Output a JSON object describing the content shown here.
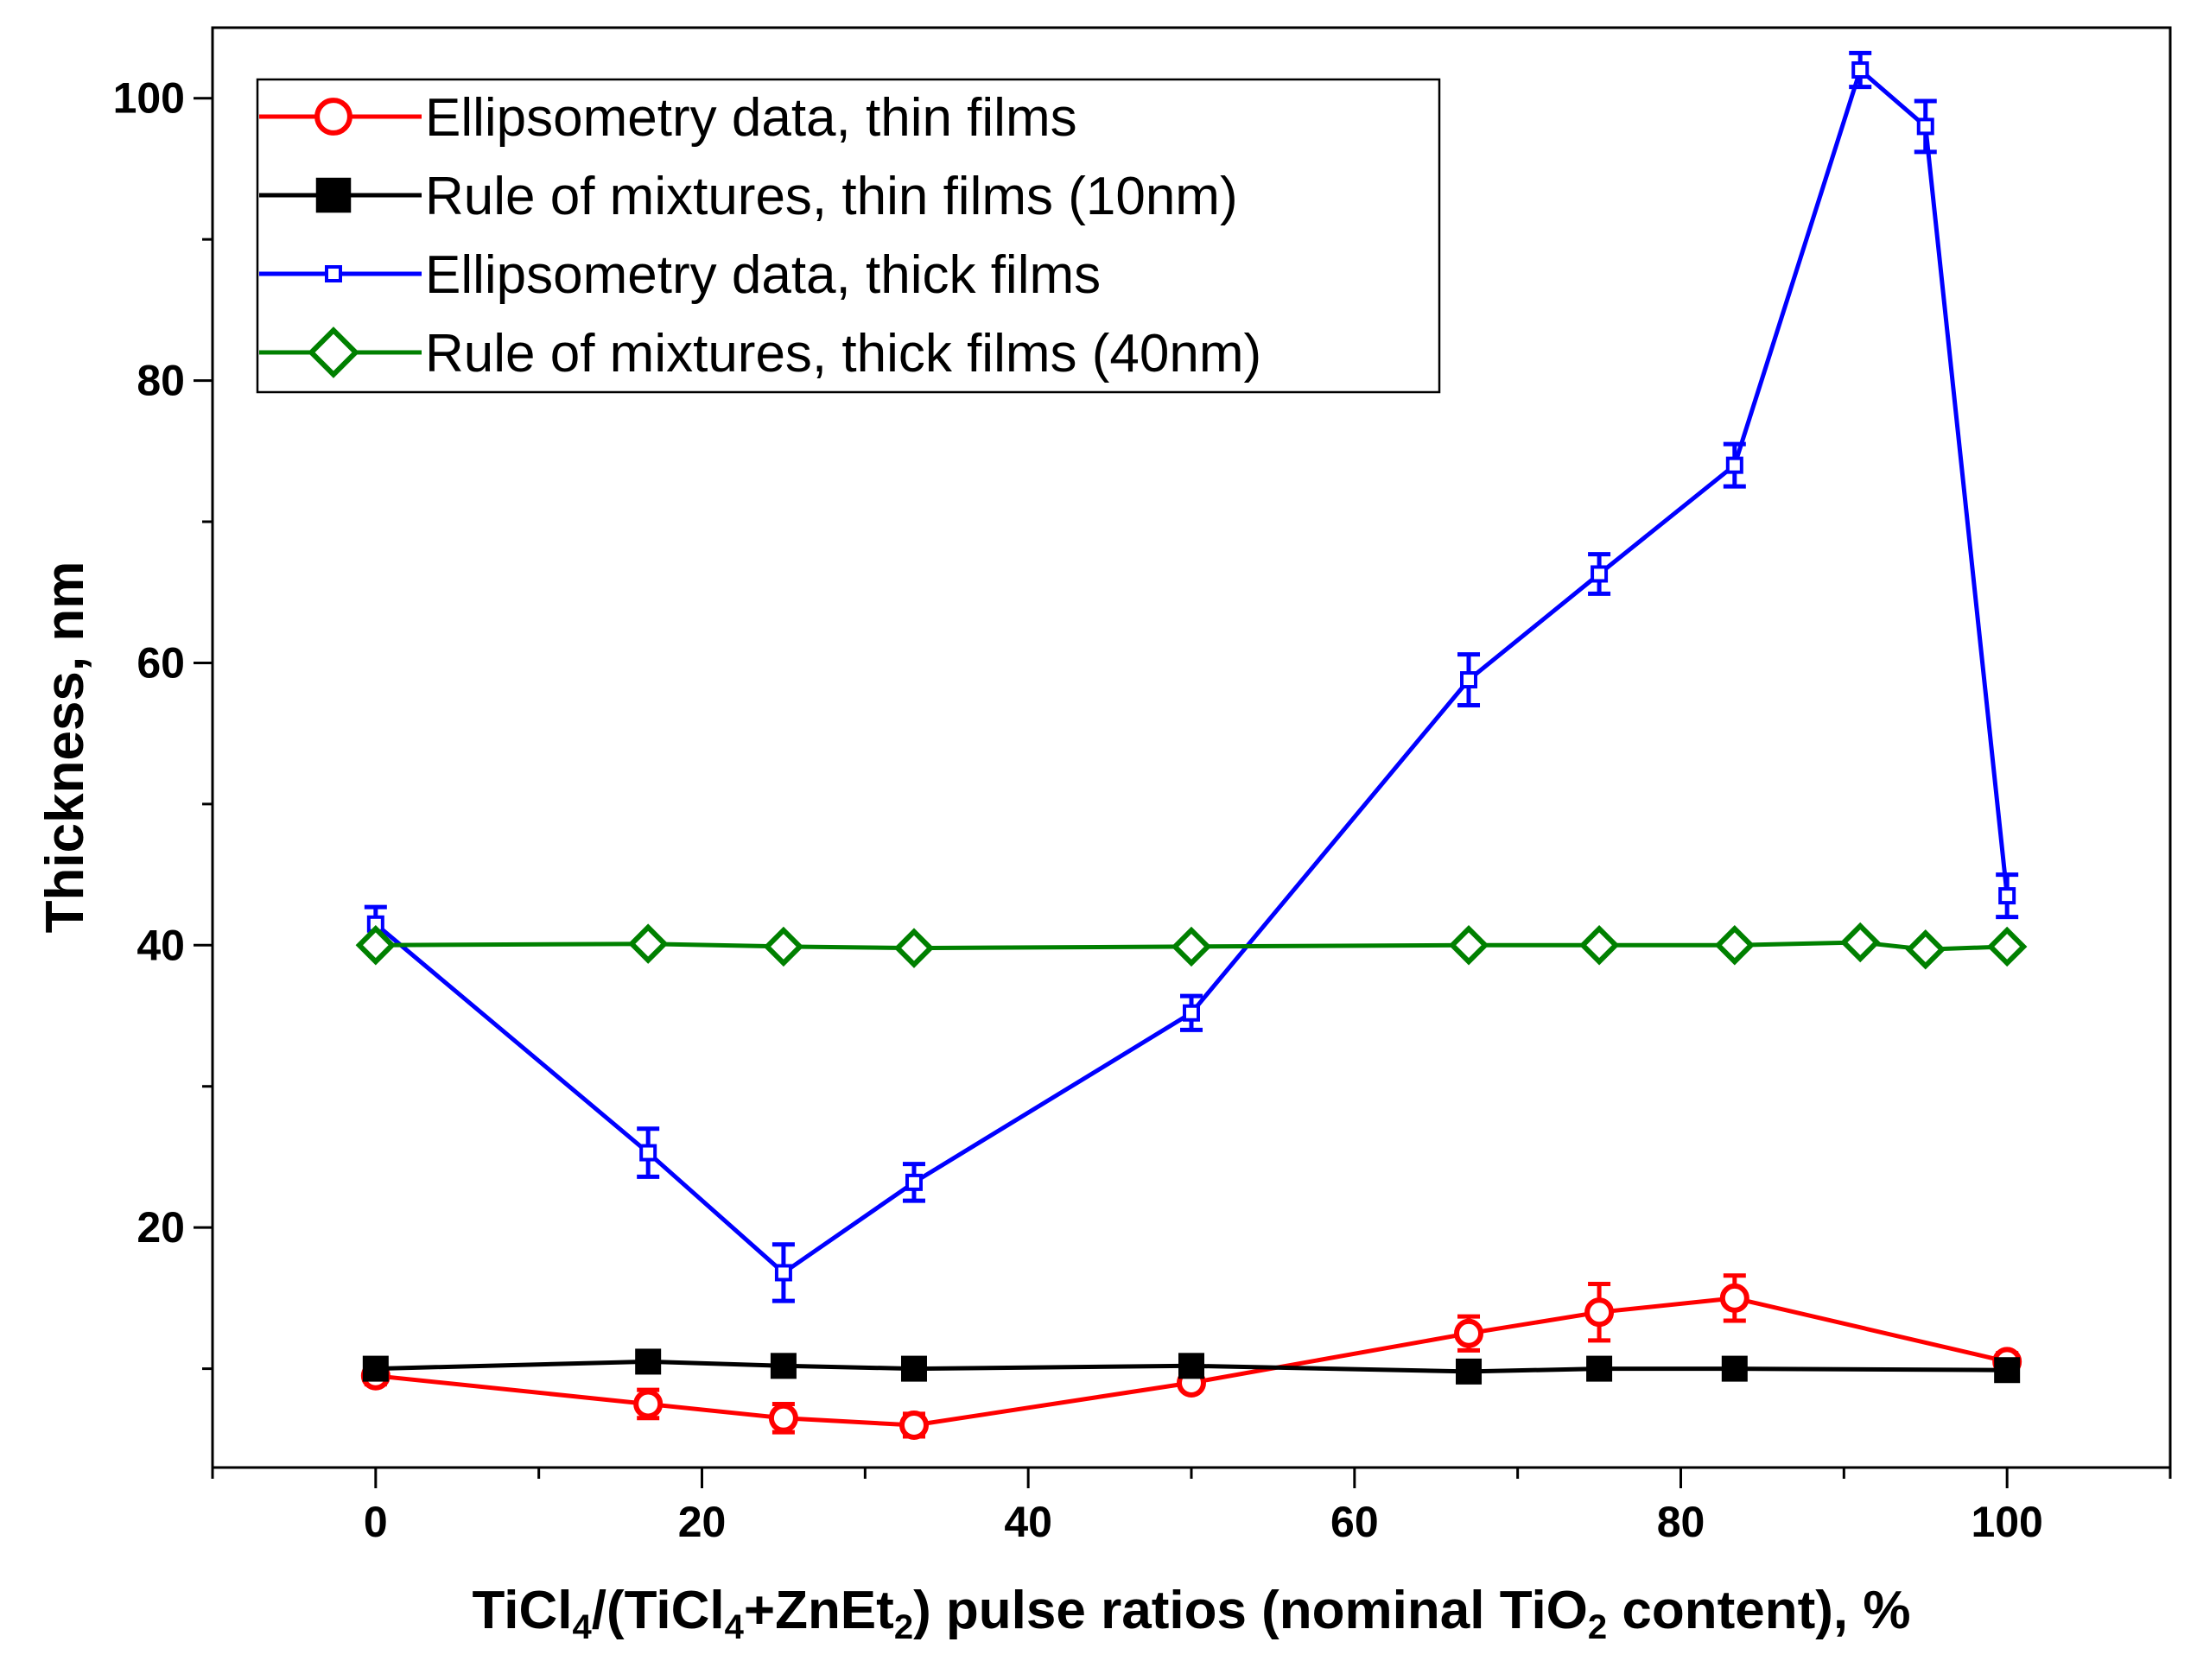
{
  "chart_data": {
    "type": "line",
    "title": "",
    "ylabel": "Thickness, nm",
    "xlabel": {
      "parts": [
        {
          "text": "TiCl",
          "sub": false
        },
        {
          "text": "4",
          "sub": true
        },
        {
          "text": "/(TiCl",
          "sub": false
        },
        {
          "text": "4",
          "sub": true
        },
        {
          "text": "+ZnEt",
          "sub": false
        },
        {
          "text": "2",
          "sub": true
        },
        {
          "text": ") pulse ratios (nominal TiO",
          "sub": false
        },
        {
          "text": "2",
          "sub": true
        },
        {
          "text": " content), %",
          "sub": false
        }
      ]
    },
    "xlim": [
      -10,
      110
    ],
    "ylim": [
      3,
      105
    ],
    "x_ticks_major": [
      0,
      20,
      40,
      60,
      80,
      100
    ],
    "x_ticks_minor": [
      -10,
      10,
      30,
      50,
      70,
      90,
      110
    ],
    "y_ticks_major": [
      20,
      40,
      60,
      80,
      100
    ],
    "y_ticks_minor": [
      10,
      30,
      50,
      70,
      90
    ],
    "grid": false,
    "legend_position": "top-left",
    "series": [
      {
        "name": "Ellipsometry data, thin films",
        "color": "#ff0000",
        "marker": "circle-open",
        "x": [
          0,
          16.7,
          25,
          33,
          50,
          67,
          75,
          83.3,
          100
        ],
        "y": [
          9.5,
          7.5,
          6.5,
          6.0,
          9.0,
          12.5,
          14.0,
          15.0,
          10.5
        ],
        "yerr": [
          0.6,
          1.0,
          1.0,
          0.8,
          0.5,
          1.2,
          2.0,
          1.6,
          0.6
        ]
      },
      {
        "name": "Rule of mixtures, thin films (10nm)",
        "color": "#000000",
        "marker": "square-filled",
        "x": [
          0,
          16.7,
          25,
          33,
          50,
          67,
          75,
          83.3,
          100
        ],
        "y": [
          10.0,
          10.5,
          10.2,
          10.0,
          10.2,
          9.8,
          10.0,
          10.0,
          9.9
        ],
        "yerr": []
      },
      {
        "name": "Ellipsometry data, thick films",
        "color": "#0000ff",
        "marker": "square-open",
        "x": [
          0,
          16.7,
          25,
          33,
          50,
          67,
          75,
          83.3,
          91,
          95,
          100
        ],
        "y": [
          41.5,
          25.3,
          16.8,
          23.2,
          35.2,
          58.8,
          66.3,
          74.0,
          102.0,
          98.0,
          43.5
        ],
        "yerr": [
          1.2,
          1.7,
          2.0,
          1.3,
          1.2,
          1.8,
          1.4,
          1.5,
          1.2,
          1.8,
          1.5
        ]
      },
      {
        "name": "Rule of mixtures, thick films (40nm)",
        "color": "#008000",
        "marker": "diamond-open",
        "x": [
          0,
          16.7,
          25,
          33,
          50,
          67,
          75,
          83.3,
          91,
          95,
          100
        ],
        "y": [
          40.0,
          40.1,
          39.9,
          39.8,
          39.9,
          40.0,
          40.0,
          40.0,
          40.2,
          39.7,
          39.9
        ],
        "yerr": []
      }
    ]
  }
}
